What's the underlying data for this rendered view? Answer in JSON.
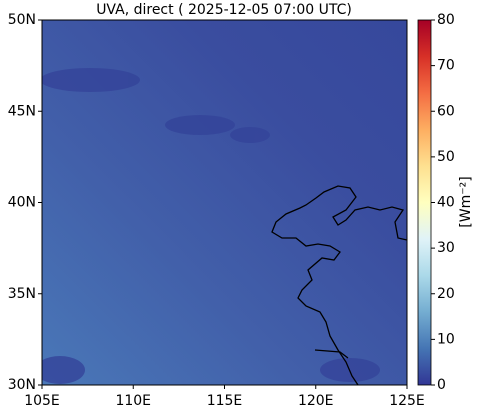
{
  "chart_data": {
    "type": "heatmap",
    "title": "UVA, direct ( 2025-12-05 07:00 UTC)",
    "xlim": [
      105,
      125
    ],
    "xticks": [
      {
        "value": 105,
        "label": "105E"
      },
      {
        "value": 110,
        "label": "110E"
      },
      {
        "value": 115,
        "label": "115E"
      },
      {
        "value": 120,
        "label": "120E"
      },
      {
        "value": 125,
        "label": "125E"
      }
    ],
    "ylim": [
      30,
      50
    ],
    "yticks": [
      {
        "value": 30,
        "label": "30N"
      },
      {
        "value": 35,
        "label": "35N"
      },
      {
        "value": 40,
        "label": "40N"
      },
      {
        "value": 45,
        "label": "45N"
      },
      {
        "value": 50,
        "label": "50N"
      }
    ],
    "colorbar": {
      "label": "[Wm⁻²]",
      "lim": [
        0,
        80
      ],
      "ticks": [
        0,
        10,
        20,
        30,
        40,
        50,
        60,
        70,
        80
      ],
      "colors": [
        "#313695",
        "#4575b4",
        "#74add1",
        "#abd9e9",
        "#e0f3f8",
        "#ffffbf",
        "#fee090",
        "#fdae61",
        "#f46d43",
        "#d73027",
        "#a50026"
      ]
    }
  }
}
